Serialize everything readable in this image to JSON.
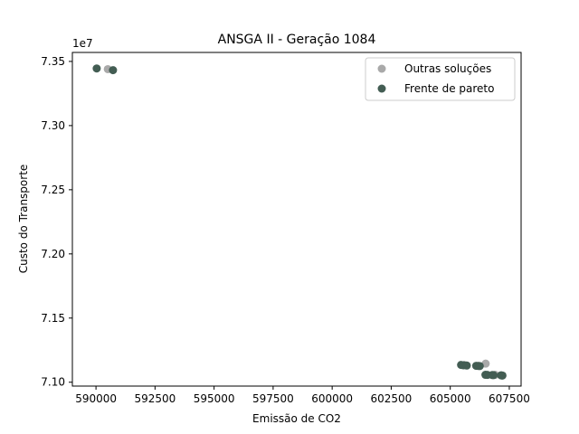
{
  "chart_data": {
    "type": "scatter",
    "title": "ANSGA II - Geração 1084",
    "xlabel": "Emissão de CO2",
    "ylabel": "Custo do Transporte",
    "y_offset_label": "1e7",
    "xlim": [
      589000,
      608000
    ],
    "ylim": [
      70970000,
      73570000
    ],
    "x_ticks": [
      590000,
      592500,
      595000,
      597500,
      600000,
      602500,
      605000,
      607500
    ],
    "x_tick_labels": [
      "590000",
      "592500",
      "595000",
      "597500",
      "600000",
      "602500",
      "605000",
      "607500"
    ],
    "y_ticks": [
      71000000,
      71500000,
      72000000,
      72500000,
      73000000,
      73500000
    ],
    "y_tick_labels": [
      "7.10",
      "7.15",
      "7.20",
      "7.25",
      "7.30",
      "7.35"
    ],
    "grid": false,
    "legend_position": "top-right",
    "series": [
      {
        "name": "Outras soluções",
        "color": "#a9a9a9",
        "points": [
          [
            590500,
            73440000
          ],
          [
            606500,
            71145000
          ],
          [
            605600,
            71135000
          ],
          [
            606200,
            71128000
          ],
          [
            606900,
            71058000
          ]
        ]
      },
      {
        "name": "Frente de pareto",
        "color": "#435d53",
        "points": [
          [
            590030,
            73445000
          ],
          [
            590720,
            73432000
          ],
          [
            605460,
            71135000
          ],
          [
            605560,
            71132000
          ],
          [
            605700,
            71130000
          ],
          [
            606100,
            71128000
          ],
          [
            606180,
            71127000
          ],
          [
            606250,
            71126000
          ],
          [
            606490,
            71058000
          ],
          [
            606570,
            71057000
          ],
          [
            606780,
            71056000
          ],
          [
            606830,
            71055000
          ],
          [
            607150,
            71054000
          ],
          [
            607180,
            71053000
          ],
          [
            607210,
            71052000
          ]
        ]
      }
    ]
  }
}
